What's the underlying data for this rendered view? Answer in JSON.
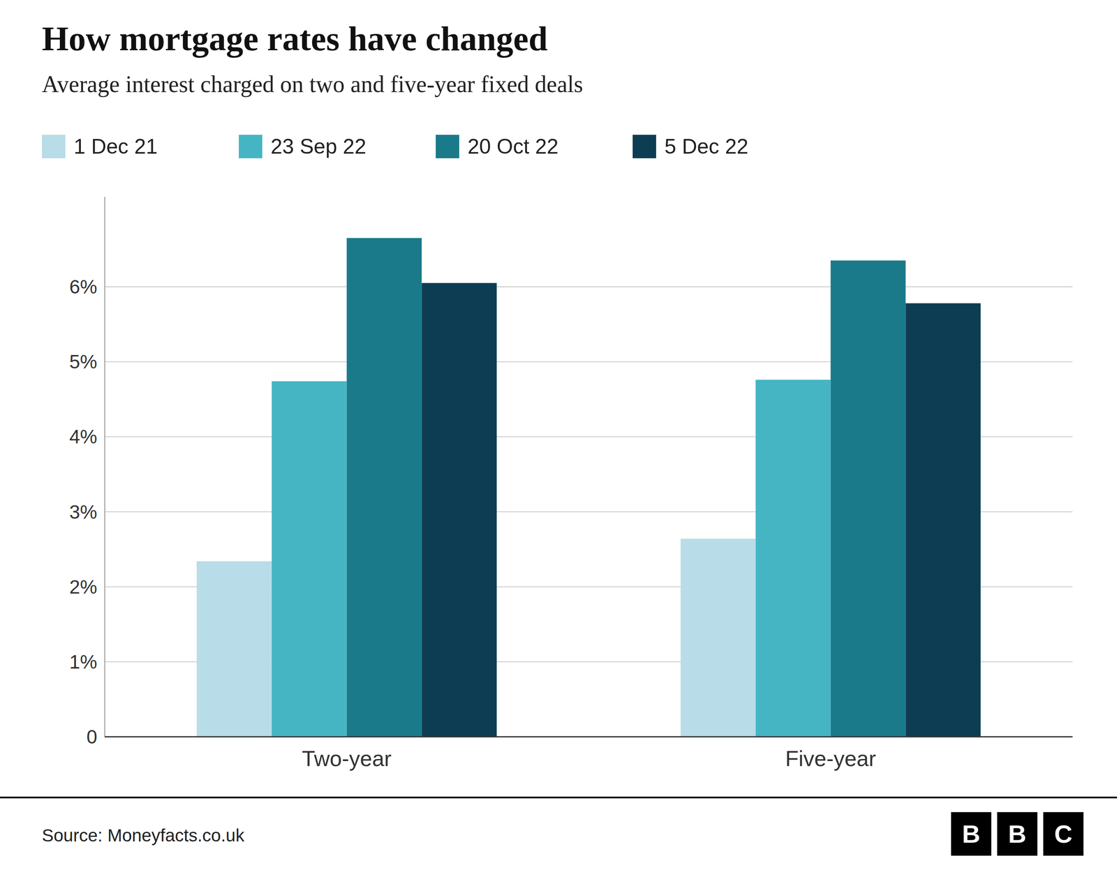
{
  "chart_data": {
    "type": "bar",
    "title": "How mortgage rates have changed",
    "subtitle": "Average interest charged on two and five-year fixed deals",
    "source": "Source: Moneyfacts.co.uk",
    "annotations": [
      "B",
      "B",
      "C"
    ],
    "categories": [
      "Two-year",
      "Five-year"
    ],
    "series": [
      {
        "name": "1 Dec 21",
        "color": "#b8dce8",
        "values": [
          2.34,
          2.64
        ]
      },
      {
        "name": "23 Sep 22",
        "color": "#45b5c4",
        "values": [
          4.74,
          4.76
        ]
      },
      {
        "name": "20 Oct 22",
        "color": "#1a7a8a",
        "values": [
          6.65,
          6.35
        ]
      },
      {
        "name": "5 Dec 22",
        "color": "#0d3d52",
        "values": [
          6.05,
          5.78
        ]
      }
    ],
    "ylim": [
      0,
      7.2
    ],
    "yticks": [
      0,
      {
        "value": 1,
        "label": "1%"
      },
      {
        "value": 2,
        "label": "2%"
      },
      {
        "value": 3,
        "label": "3%"
      },
      {
        "value": 4,
        "label": "4%"
      },
      {
        "value": 5,
        "label": "5%"
      },
      {
        "value": 6,
        "label": "6%"
      }
    ],
    "grid": true,
    "legend": "top"
  }
}
